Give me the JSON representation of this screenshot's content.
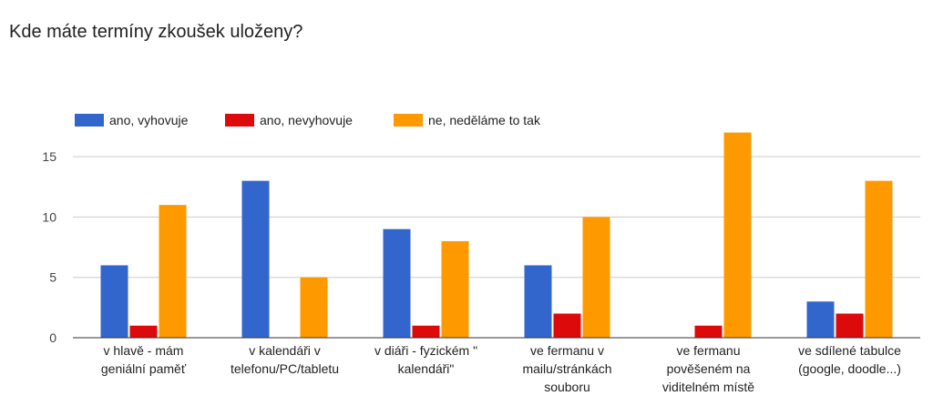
{
  "title": "Kde máte termíny zkoušek uloženy?",
  "chart_data": {
    "type": "bar",
    "title": "Kde máte termíny zkoušek uloženy?",
    "categories": [
      [
        "v hlavě - mám",
        "geniální paměť"
      ],
      [
        "v kalendáři v",
        "telefonu/PC/tabletu"
      ],
      [
        "v diáři - fyzickém \"",
        "kalendáři\""
      ],
      [
        "ve fermanu v",
        "mailu/stránkách",
        "souboru"
      ],
      [
        "ve fermanu",
        "pověšeném na",
        "viditelném místě"
      ],
      [
        "ve sdílené tabulce",
        "(google, doodle...)"
      ]
    ],
    "series": [
      {
        "name": "ano, vyhovuje",
        "color": "#3366cc",
        "values": [
          6,
          13,
          9,
          6,
          0,
          3
        ]
      },
      {
        "name": "ano, nevyhovuje",
        "color": "#dc0a0a",
        "values": [
          1,
          0,
          1,
          2,
          1,
          2
        ]
      },
      {
        "name": "ne, neděláme to tak",
        "color": "#ff9900",
        "values": [
          11,
          5,
          8,
          10,
          17,
          13
        ]
      }
    ],
    "yticks": [
      0,
      5,
      10,
      15
    ],
    "ylim": [
      0,
      18
    ],
    "grid": true,
    "legend_position": "top-left"
  }
}
